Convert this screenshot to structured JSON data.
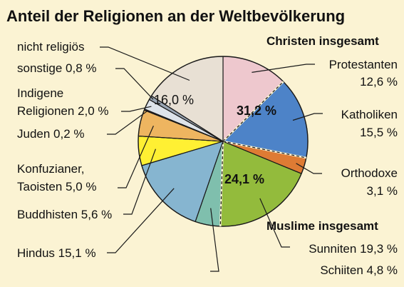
{
  "chart_data": {
    "type": "pie",
    "title": "Anteil der Religionen an der Weltbevölkerung",
    "slices": [
      {
        "label": "Protestanten",
        "value": 12.6,
        "value_text": "12,6 %",
        "color": "#eec8ce"
      },
      {
        "label": "Katholiken",
        "value": 15.5,
        "value_text": "15,5 %",
        "color": "#4d83c8"
      },
      {
        "label": "Orthodoxe",
        "value": 3.1,
        "value_text": "3,1 %",
        "color": "#de7b34"
      },
      {
        "label": "Sunniten",
        "value": 19.3,
        "value_text": "19,3 %",
        "color": "#93bb3c"
      },
      {
        "label": "Schiiten",
        "value": 4.8,
        "value_text": "4,8 %",
        "color": "#7fbfad"
      },
      {
        "label": "Hindus",
        "value": 15.1,
        "value_text": "15,1 %",
        "color": "#86b5d0"
      },
      {
        "label": "Buddhisten",
        "value": 5.6,
        "value_text": "5,6 %",
        "color": "#fff033"
      },
      {
        "label": "Konfuzianer, Taoisten",
        "value": 5.0,
        "value_text": "5,0 %",
        "color": "#eeb560"
      },
      {
        "label": "Juden",
        "value": 0.2,
        "value_text": "0,2 %",
        "color": "#8a2f8a"
      },
      {
        "label": "Indigene Religionen",
        "value": 2.0,
        "value_text": "2,0 %",
        "color": "#dde3ea"
      },
      {
        "label": "sonstige",
        "value": 0.8,
        "value_text": "0,8 %",
        "color": "#9aa6b4"
      },
      {
        "label": "nicht religiös",
        "value": 16.0,
        "value_text": "16,0 %",
        "color": "#e8e0d4"
      }
    ],
    "groups": [
      {
        "label": "Christen insgesamt",
        "value": 31.2,
        "value_text": "31,2 %"
      },
      {
        "label": "Muslime insgesamt",
        "value": 24.1,
        "value_text": "24,1 %"
      }
    ]
  },
  "labels": {
    "protestanten": "Protestanten",
    "protestanten_val": "12,6 %",
    "katholiken": "Katholiken",
    "katholiken_val": "15,5 %",
    "orthodoxe": "Orthodoxe",
    "orthodoxe_val": "3,1 %",
    "sunniten": "Sunniten 19,3 %",
    "schiiten": "Schiiten 4,8 %",
    "hindus": "Hindus 15,1 %",
    "buddhisten": "Buddhisten 5,6 %",
    "konfuzianer_1": "Konfuzianer,",
    "konfuzianer_2": "Taoisten 5,0 %",
    "juden": "Juden 0,2 %",
    "indigene_1": "Indigene",
    "indigene_2": "Religionen 2,0 %",
    "sonstige": "sonstige 0,8 %",
    "nicht_religioes": "nicht religiös",
    "nicht_religioes_val": "16,0 %",
    "christen_group": "Christen insgesamt",
    "christen_val": "31,2 %",
    "muslime_group": "Muslime insgesamt",
    "muslime_val": "24,1 %"
  }
}
